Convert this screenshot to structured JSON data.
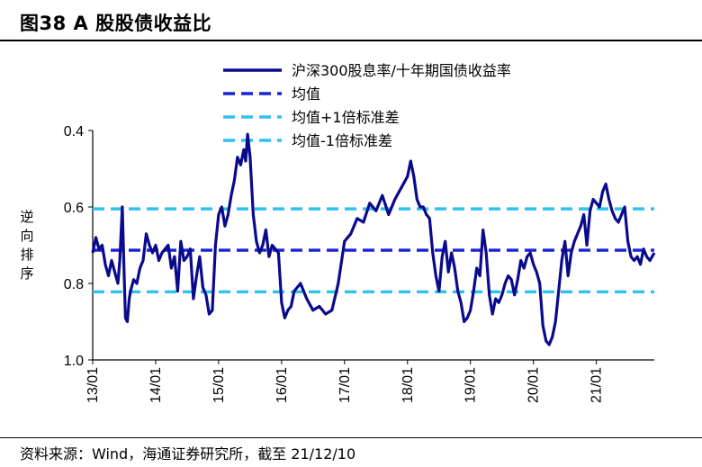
{
  "header": {
    "title": "图38 A 股股债收益比"
  },
  "footer": {
    "source": "资料来源：Wind，海通证券研究所，截至 21/12/10"
  },
  "colors": {
    "navy": "#0a0a8c",
    "mean": "#1a23d6",
    "band": "#2ec3ee"
  },
  "chart_data": {
    "type": "line",
    "title": "图38 A 股股债收益比",
    "xlabel": "",
    "ylabel": "逆向排序",
    "ylim": [
      0.4,
      1.0
    ],
    "y_inverted": true,
    "yticks": [
      "0.4",
      "0.6",
      "0.8",
      "1.0"
    ],
    "yticks_values": [
      0.4,
      0.6,
      0.8,
      1.0
    ],
    "xticks": [
      "13/01",
      "14/01",
      "15/01",
      "16/01",
      "17/01",
      "18/01",
      "19/01",
      "20/01",
      "21/01"
    ],
    "xticks_values": [
      2013,
      2014,
      2015,
      2016,
      2017,
      2018,
      2019,
      2020,
      2021
    ],
    "xlim": [
      2013.0,
      2021.92
    ],
    "legend_position": "top",
    "series": [
      {
        "name": "沪深300股息率/十年期国债收益率",
        "style": "solid",
        "x": [
          2013.0,
          2013.05,
          2013.1,
          2013.15,
          2013.2,
          2013.25,
          2013.3,
          2013.35,
          2013.4,
          2013.43,
          2013.47,
          2013.5,
          2013.52,
          2013.55,
          2013.58,
          2013.6,
          2013.65,
          2013.7,
          2013.75,
          2013.8,
          2013.85,
          2013.9,
          2013.95,
          2014.0,
          2014.05,
          2014.1,
          2014.15,
          2014.2,
          2014.25,
          2014.3,
          2014.35,
          2014.4,
          2014.45,
          2014.5,
          2014.55,
          2014.6,
          2014.65,
          2014.7,
          2014.75,
          2014.8,
          2014.85,
          2014.9,
          2014.95,
          2015.0,
          2015.05,
          2015.1,
          2015.15,
          2015.2,
          2015.25,
          2015.3,
          2015.35,
          2015.4,
          2015.43,
          2015.46,
          2015.5,
          2015.55,
          2015.6,
          2015.65,
          2015.7,
          2015.75,
          2015.8,
          2015.85,
          2015.9,
          2015.95,
          2016.0,
          2016.05,
          2016.1,
          2016.15,
          2016.2,
          2016.3,
          2016.4,
          2016.5,
          2016.6,
          2016.7,
          2016.8,
          2016.9,
          2017.0,
          2017.1,
          2017.2,
          2017.3,
          2017.4,
          2017.5,
          2017.6,
          2017.7,
          2017.8,
          2017.9,
          2018.0,
          2018.05,
          2018.1,
          2018.15,
          2018.2,
          2018.25,
          2018.3,
          2018.35,
          2018.4,
          2018.45,
          2018.5,
          2018.55,
          2018.6,
          2018.65,
          2018.7,
          2018.75,
          2018.8,
          2018.85,
          2018.9,
          2018.95,
          2019.0,
          2019.05,
          2019.1,
          2019.15,
          2019.2,
          2019.25,
          2019.3,
          2019.35,
          2019.4,
          2019.45,
          2019.5,
          2019.55,
          2019.6,
          2019.65,
          2019.7,
          2019.75,
          2019.8,
          2019.85,
          2019.9,
          2019.95,
          2020.0,
          2020.05,
          2020.1,
          2020.15,
          2020.2,
          2020.25,
          2020.3,
          2020.35,
          2020.4,
          2020.45,
          2020.5,
          2020.55,
          2020.6,
          2020.65,
          2020.7,
          2020.75,
          2020.8,
          2020.85,
          2020.9,
          2020.95,
          2021.0,
          2021.05,
          2021.1,
          2021.15,
          2021.2,
          2021.25,
          2021.3,
          2021.35,
          2021.4,
          2021.45,
          2021.5,
          2021.55,
          2021.6,
          2021.65,
          2021.7,
          2021.75,
          2021.8,
          2021.85,
          2021.92
        ],
        "y": [
          0.72,
          0.68,
          0.71,
          0.7,
          0.75,
          0.78,
          0.74,
          0.77,
          0.8,
          0.74,
          0.6,
          0.78,
          0.89,
          0.9,
          0.84,
          0.82,
          0.79,
          0.8,
          0.76,
          0.74,
          0.67,
          0.7,
          0.72,
          0.7,
          0.74,
          0.72,
          0.71,
          0.7,
          0.76,
          0.73,
          0.82,
          0.69,
          0.74,
          0.73,
          0.71,
          0.84,
          0.78,
          0.73,
          0.81,
          0.83,
          0.88,
          0.87,
          0.7,
          0.62,
          0.6,
          0.65,
          0.62,
          0.57,
          0.53,
          0.47,
          0.49,
          0.45,
          0.48,
          0.41,
          0.47,
          0.62,
          0.69,
          0.72,
          0.7,
          0.66,
          0.73,
          0.7,
          0.71,
          0.72,
          0.85,
          0.89,
          0.87,
          0.86,
          0.82,
          0.8,
          0.84,
          0.87,
          0.86,
          0.88,
          0.87,
          0.8,
          0.69,
          0.67,
          0.63,
          0.64,
          0.59,
          0.61,
          0.57,
          0.62,
          0.58,
          0.55,
          0.52,
          0.48,
          0.52,
          0.58,
          0.6,
          0.6,
          0.62,
          0.63,
          0.72,
          0.78,
          0.82,
          0.73,
          0.69,
          0.77,
          0.72,
          0.76,
          0.82,
          0.85,
          0.9,
          0.89,
          0.87,
          0.82,
          0.76,
          0.78,
          0.66,
          0.72,
          0.83,
          0.88,
          0.84,
          0.85,
          0.83,
          0.8,
          0.78,
          0.79,
          0.83,
          0.79,
          0.74,
          0.76,
          0.73,
          0.72,
          0.75,
          0.77,
          0.8,
          0.91,
          0.95,
          0.96,
          0.94,
          0.9,
          0.82,
          0.74,
          0.69,
          0.78,
          0.72,
          0.69,
          0.67,
          0.65,
          0.62,
          0.7,
          0.61,
          0.58,
          0.59,
          0.6,
          0.56,
          0.54,
          0.58,
          0.61,
          0.63,
          0.64,
          0.62,
          0.6,
          0.69,
          0.73,
          0.74,
          0.73,
          0.75,
          0.71,
          0.73,
          0.74,
          0.72
        ]
      },
      {
        "name": "均值",
        "style": "dashed",
        "value": 0.713
      },
      {
        "name": "均值+1倍标准差",
        "style": "dashed",
        "value": 0.605
      },
      {
        "name": "均值-1倍标准差",
        "style": "dashed",
        "value": 0.822
      }
    ]
  }
}
